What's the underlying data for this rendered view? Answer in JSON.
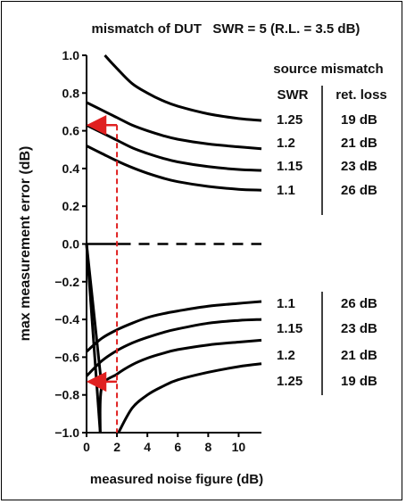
{
  "chart_data": {
    "type": "line",
    "title": "mismatch of DUT   SWR = 5 (R.L. = 3.5 dB)",
    "xlabel": "measured noise figure (dB)",
    "ylabel": "max measurement error (dB)",
    "xlim": [
      0,
      11.5
    ],
    "ylim": [
      -1.0,
      1.0
    ],
    "x_ticks": [
      0,
      2,
      4,
      6,
      8,
      10
    ],
    "x_tick_labels": [
      "0",
      "2",
      "4",
      "6",
      "8",
      "10"
    ],
    "y_ticks": [
      1.0,
      0.8,
      0.6,
      0.4,
      0.2,
      0.0,
      -0.2,
      -0.4,
      -0.6,
      -0.8,
      -1.0
    ],
    "y_tick_labels": [
      "1.0",
      "0.8",
      "0.6",
      "0.4",
      "0.2",
      "0.0",
      "−0.2",
      "−0.4",
      "−0.6",
      "−0.8",
      "−1.0"
    ],
    "grid": false,
    "legend_heading": "source mismatch",
    "col_swr_heading": "SWR",
    "col_rl_heading": "ret. loss",
    "upper_labels": [
      {
        "swr": "1.25",
        "rl": "19 dB"
      },
      {
        "swr": "1.2",
        "rl": "21 dB"
      },
      {
        "swr": "1.15",
        "rl": "23 dB"
      },
      {
        "swr": "1.1",
        "rl": "26 dB"
      }
    ],
    "lower_labels": [
      {
        "swr": "1.1",
        "rl": "26 dB"
      },
      {
        "swr": "1.15",
        "rl": "23 dB"
      },
      {
        "swr": "1.2",
        "rl": "21 dB"
      },
      {
        "swr": "1.25",
        "rl": "19 dB"
      }
    ],
    "series": [
      {
        "x": [
          1.2,
          2,
          3,
          4,
          5,
          6,
          8,
          10,
          11.5
        ],
        "y": [
          1.0,
          0.93,
          0.85,
          0.8,
          0.76,
          0.73,
          0.69,
          0.665,
          0.655
        ]
      },
      {
        "x": [
          0,
          1,
          2,
          3,
          4,
          5,
          6,
          8,
          10,
          11.5
        ],
        "y": [
          0.75,
          0.71,
          0.67,
          0.63,
          0.6,
          0.575,
          0.555,
          0.53,
          0.515,
          0.505
        ]
      },
      {
        "x": [
          0,
          1,
          2,
          3,
          4,
          5,
          6,
          8,
          10,
          11.5
        ],
        "y": [
          0.63,
          0.59,
          0.55,
          0.51,
          0.48,
          0.455,
          0.435,
          0.41,
          0.395,
          0.39
        ]
      },
      {
        "x": [
          0,
          1,
          2,
          3,
          4,
          5,
          6,
          8,
          10,
          11.5
        ],
        "y": [
          0.52,
          0.48,
          0.44,
          0.405,
          0.375,
          0.35,
          0.33,
          0.305,
          0.29,
          0.285
        ]
      },
      {
        "x": [
          0,
          1,
          2,
          3,
          4,
          5,
          6,
          8,
          10,
          11.5
        ],
        "y": [
          -0.57,
          -0.5,
          -0.455,
          -0.42,
          -0.39,
          -0.37,
          -0.355,
          -0.33,
          -0.315,
          -0.305
        ]
      },
      {
        "x": [
          0,
          1,
          2,
          3,
          4,
          5,
          6,
          8,
          10,
          11.5
        ],
        "y": [
          -0.7,
          -0.62,
          -0.565,
          -0.525,
          -0.495,
          -0.47,
          -0.45,
          -0.42,
          -0.405,
          -0.4
        ]
      },
      {
        "x": [
          0.9,
          1,
          2,
          3,
          4,
          5,
          6,
          8,
          10,
          11.5
        ],
        "y": [
          -1.0,
          -0.76,
          -0.69,
          -0.64,
          -0.605,
          -0.58,
          -0.56,
          -0.535,
          -0.52,
          -0.51
        ]
      },
      {
        "x": [
          2.1,
          3,
          4,
          5,
          6,
          8,
          10,
          11.5
        ],
        "y": [
          -1.0,
          -0.87,
          -0.8,
          -0.755,
          -0.72,
          -0.68,
          -0.65,
          -0.635
        ]
      }
    ],
    "zero_line": {
      "y": 0.0,
      "solid_until_x": 2.2,
      "style": "dashed"
    },
    "convergence_lines": [
      {
        "x": [
          0,
          0.9
        ],
        "y": [
          0.0,
          -1.0
        ]
      },
      {
        "x": [
          0,
          1.0
        ],
        "y": [
          0.0,
          -0.76
        ]
      }
    ],
    "annotation": {
      "x": 2.0,
      "upper_y": 0.63,
      "lower_y": -0.73,
      "color": "#e02020",
      "style": "dashed vertical line with arrows to the y-axis"
    }
  }
}
